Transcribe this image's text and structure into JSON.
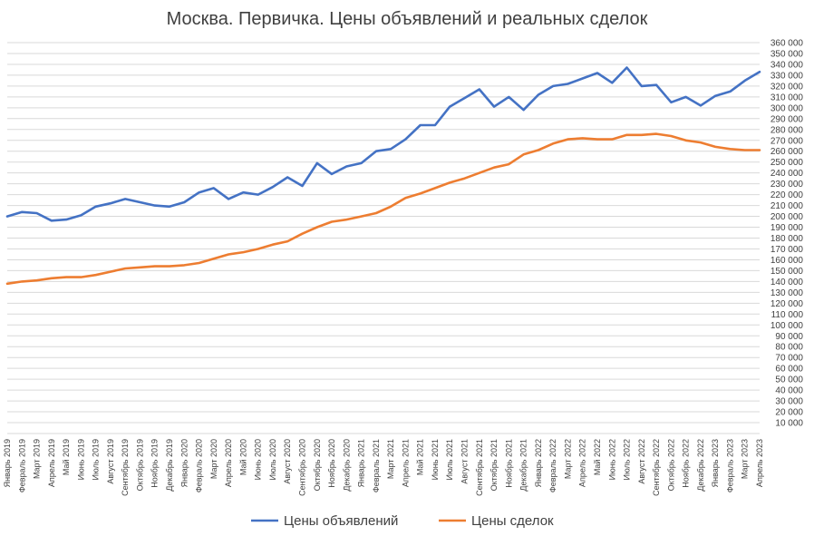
{
  "chart_data": {
    "type": "line",
    "title": "Москва. Первичка. Цены объявлений и реальных сделок",
    "xlabel": "",
    "ylabel": "",
    "ylim": [
      0,
      360000
    ],
    "ytick_step": 10000,
    "grid": true,
    "legend": "bottom",
    "categories": [
      "Январь 2019",
      "Февраль 2019",
      "Март 2019",
      "Апрель 2019",
      "Май 2019",
      "Июнь 2019",
      "Июль 2019",
      "Август 2019",
      "Сентябрь 2019",
      "Октябрь 2019",
      "Ноябрь 2019",
      "Декабрь 2019",
      "Январь 2020",
      "Февраль 2020",
      "Март 2020",
      "Апрель 2020",
      "Май 2020",
      "Июнь 2020",
      "Июль 2020",
      "Август 2020",
      "Сентябрь 2020",
      "Октябрь 2020",
      "Ноябрь 2020",
      "Декабрь 2020",
      "Январь 2021",
      "Февраль 2021",
      "Март 2021",
      "Апрель 2021",
      "Май 2021",
      "Июнь 2021",
      "Июль 2021",
      "Август 2021",
      "Сентябрь 2021",
      "Октябрь 2021",
      "Ноябрь 2021",
      "Декабрь 2021",
      "Январь 2022",
      "Февраль 2022",
      "Март 2022",
      "Апрель 2022",
      "Май 2022",
      "Июнь 2022",
      "Июль 2022",
      "Август 2022",
      "Сентябрь 2022",
      "Октябрь 2022",
      "Ноябрь 2022",
      "Декабрь 2022",
      "Январь 2023",
      "Февраль 2023",
      "Март 2023",
      "Апрель 2023"
    ],
    "series": [
      {
        "name": "Цены объявлений",
        "color": "#4472c4",
        "values": [
          200000,
          204000,
          203000,
          196000,
          197000,
          201000,
          209000,
          212000,
          216000,
          213000,
          210000,
          209000,
          213000,
          222000,
          226000,
          216000,
          222000,
          220000,
          227000,
          236000,
          228000,
          249000,
          239000,
          246000,
          249000,
          260000,
          262000,
          271000,
          284000,
          284000,
          301000,
          309000,
          317000,
          301000,
          310000,
          298000,
          312000,
          320000,
          322000,
          327000,
          332000,
          323000,
          337000,
          320000,
          321000,
          305000,
          310000,
          302000,
          311000,
          315000,
          325000,
          333000
        ]
      },
      {
        "name": "Цены сделок",
        "color": "#ed7d31",
        "values": [
          138000,
          140000,
          141000,
          143000,
          144000,
          144000,
          146000,
          149000,
          152000,
          153000,
          154000,
          154000,
          155000,
          157000,
          161000,
          165000,
          167000,
          170000,
          174000,
          177000,
          184000,
          190000,
          195000,
          197000,
          200000,
          203000,
          209000,
          217000,
          221000,
          226000,
          231000,
          235000,
          240000,
          245000,
          248000,
          257000,
          261000,
          267000,
          271000,
          272000,
          271000,
          271000,
          275000,
          275000,
          276000,
          274000,
          270000,
          268000,
          264000,
          262000,
          261000,
          261000
        ]
      }
    ]
  }
}
